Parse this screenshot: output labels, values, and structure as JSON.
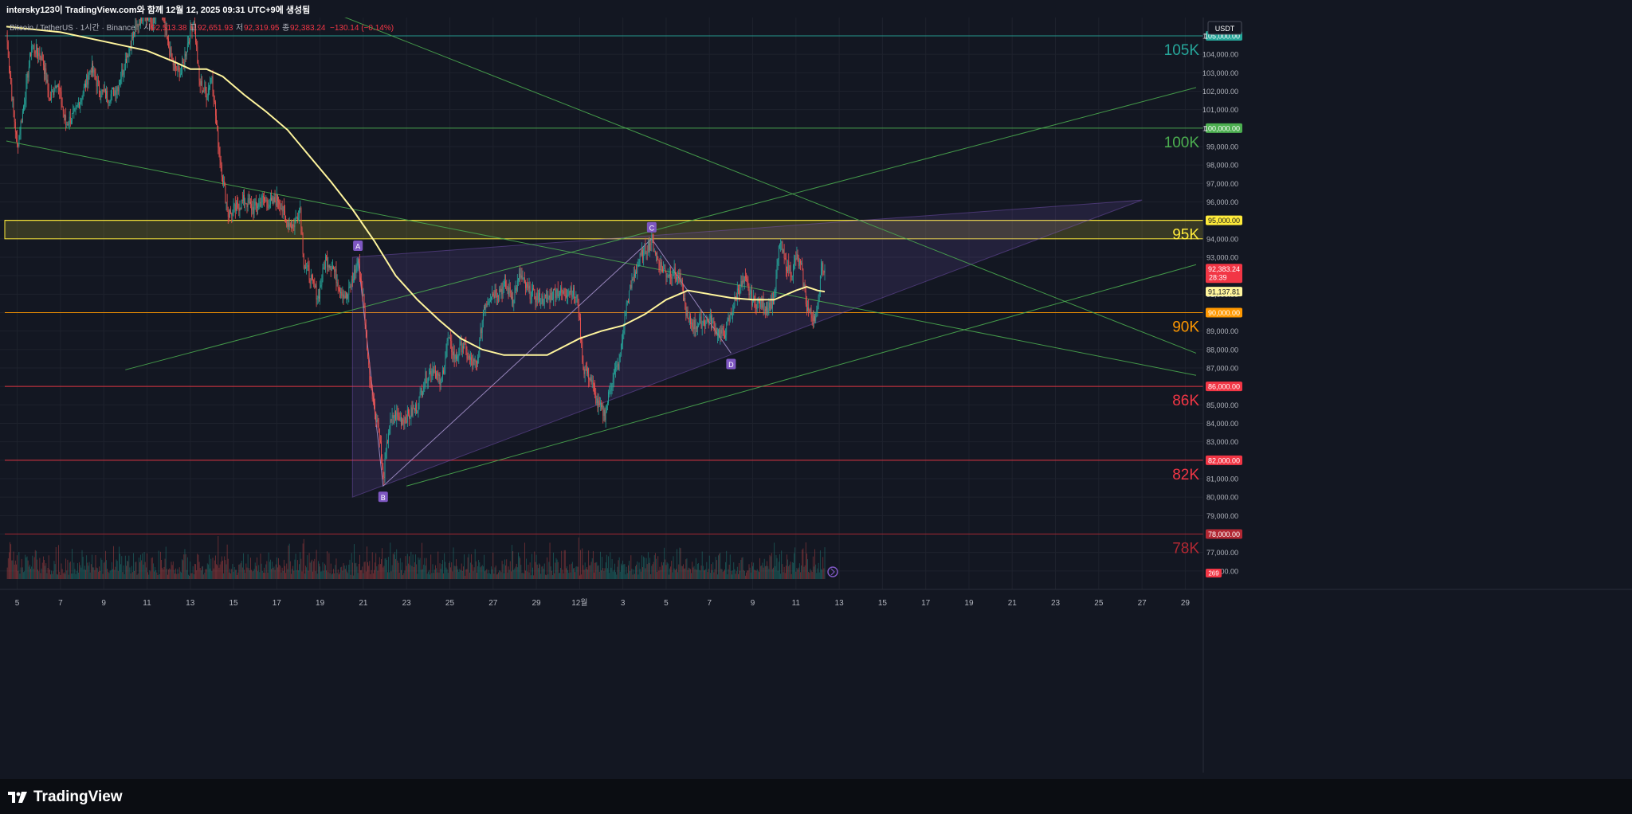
{
  "caption": "intersky123이 TradingView.com와 함께 12월 12, 2025 09:31 UTC+9에 생성됨",
  "legend": {
    "symbol": "Bitcoin / TetherUS · 1시간 · Binance",
    "open_label": "시",
    "open": "92,513.38",
    "high_label": "고",
    "high": "92,651.93",
    "low_label": "저",
    "low": "92,319.95",
    "close_label": "종",
    "close": "92,383.24",
    "change": "−130.14 (−0.14%)"
  },
  "currency_button": "USDT",
  "brand": "TradingView",
  "colors": {
    "background": "#131722",
    "grid": "#1e222d",
    "up": "#26a69a",
    "down": "#ef5350",
    "ma": "#fff59d",
    "channel": "#4caf50",
    "triangle_fill": "#7e57c2",
    "level_105k": "#26a69a",
    "level_100k": "#4caf50",
    "level_95k": "#ffeb3b",
    "level_90k": "#ff9800",
    "level_86k": "#f23645",
    "level_82k": "#f23645",
    "level_78k": "#b22833"
  },
  "chart_data": {
    "type": "candlestick",
    "title": "Bitcoin / TetherUS · 1시간 · Binance",
    "ylim": [
      75000,
      107000
    ],
    "y_ticks": [
      76000,
      77000,
      78000,
      79000,
      80000,
      81000,
      82000,
      83000,
      84000,
      85000,
      86000,
      87000,
      88000,
      89000,
      90000,
      91000,
      92000,
      93000,
      94000,
      95000,
      96000,
      97000,
      98000,
      99000,
      100000,
      101000,
      102000,
      103000,
      104000,
      105000
    ],
    "y_tick_labels": [
      "76,000.00",
      "77,000.00",
      "78,000.00",
      "79,000.00",
      "80,000.00",
      "81,000.00",
      "82,000.00",
      "83,000.00",
      "84,000.00",
      "85,000.00",
      "86,000.00",
      "87,000.00",
      "88,000.00",
      "89,000.00",
      "90,000.00",
      "91,000.00",
      "92,000.00",
      "93,000.00",
      "94,000.00",
      "95,000.00",
      "96,000.00",
      "97,000.00",
      "98,000.00",
      "99,000.00",
      "100,000.00",
      "101,000.00",
      "102,000.00",
      "103,000.00",
      "104,000.00",
      "105,000.00"
    ],
    "x_domain_days": [
      "2025-11-04 12:00",
      "2025-12-29 12:00"
    ],
    "x_ticks": [
      {
        "date": "2025-11-05",
        "label": "5"
      },
      {
        "date": "2025-11-07",
        "label": "7"
      },
      {
        "date": "2025-11-09",
        "label": "9"
      },
      {
        "date": "2025-11-11",
        "label": "11"
      },
      {
        "date": "2025-11-13",
        "label": "13"
      },
      {
        "date": "2025-11-15",
        "label": "15"
      },
      {
        "date": "2025-11-17",
        "label": "17"
      },
      {
        "date": "2025-11-19",
        "label": "19"
      },
      {
        "date": "2025-11-21",
        "label": "21"
      },
      {
        "date": "2025-11-23",
        "label": "23"
      },
      {
        "date": "2025-11-25",
        "label": "25"
      },
      {
        "date": "2025-11-27",
        "label": "27"
      },
      {
        "date": "2025-11-29",
        "label": "29"
      },
      {
        "date": "2025-12-01",
        "label": "12월"
      },
      {
        "date": "2025-12-03",
        "label": "3"
      },
      {
        "date": "2025-12-05",
        "label": "5"
      },
      {
        "date": "2025-12-07",
        "label": "7"
      },
      {
        "date": "2025-12-09",
        "label": "9"
      },
      {
        "date": "2025-12-11",
        "label": "11"
      },
      {
        "date": "2025-12-13",
        "label": "13"
      },
      {
        "date": "2025-12-15",
        "label": "15"
      },
      {
        "date": "2025-12-17",
        "label": "17"
      },
      {
        "date": "2025-12-19",
        "label": "19"
      },
      {
        "date": "2025-12-21",
        "label": "21"
      },
      {
        "date": "2025-12-23",
        "label": "23"
      },
      {
        "date": "2025-12-25",
        "label": "25"
      },
      {
        "date": "2025-12-27",
        "label": "27"
      },
      {
        "date": "2025-12-29",
        "label": "29"
      }
    ],
    "price_path": [
      [
        "2025-11-04 12:00",
        105200
      ],
      [
        "2025-11-04 18:00",
        101800
      ],
      [
        "2025-11-05 00:00",
        99000
      ],
      [
        "2025-11-05 08:00",
        101500
      ],
      [
        "2025-11-05 16:00",
        104500
      ],
      [
        "2025-11-06 04:00",
        103800
      ],
      [
        "2025-11-06 12:00",
        101500
      ],
      [
        "2025-11-06 20:00",
        102600
      ],
      [
        "2025-11-07 06:00",
        100200
      ],
      [
        "2025-11-07 16:00",
        100800
      ],
      [
        "2025-11-08 00:00",
        101800
      ],
      [
        "2025-11-08 10:00",
        103300
      ],
      [
        "2025-11-08 20:00",
        102000
      ],
      [
        "2025-11-09 06:00",
        101700
      ],
      [
        "2025-11-09 16:00",
        102300
      ],
      [
        "2025-11-10 02:00",
        104000
      ],
      [
        "2025-11-10 10:00",
        105200
      ],
      [
        "2025-11-10 20:00",
        106300
      ],
      [
        "2025-11-11 06:00",
        105600
      ],
      [
        "2025-11-11 14:00",
        106700
      ],
      [
        "2025-11-11 22:00",
        104800
      ],
      [
        "2025-11-12 06:00",
        103300
      ],
      [
        "2025-11-12 14:00",
        103000
      ],
      [
        "2025-11-12 22:00",
        104800
      ],
      [
        "2025-11-13 04:00",
        106000
      ],
      [
        "2025-11-13 10:00",
        102500
      ],
      [
        "2025-11-13 18:00",
        101800
      ],
      [
        "2025-11-14 00:00",
        102900
      ],
      [
        "2025-11-14 06:00",
        99600
      ],
      [
        "2025-11-14 12:00",
        97300
      ],
      [
        "2025-11-14 18:00",
        95300
      ],
      [
        "2025-11-15 02:00",
        95600
      ],
      [
        "2025-11-15 12:00",
        96100
      ],
      [
        "2025-11-15 22:00",
        95600
      ],
      [
        "2025-11-16 08:00",
        96100
      ],
      [
        "2025-11-16 18:00",
        95900
      ],
      [
        "2025-11-17 02:00",
        96200
      ],
      [
        "2025-11-17 10:00",
        95000
      ],
      [
        "2025-11-17 18:00",
        94700
      ],
      [
        "2025-11-18 02:00",
        95700
      ],
      [
        "2025-11-18 06:00",
        92700
      ],
      [
        "2025-11-18 14:00",
        91800
      ],
      [
        "2025-11-18 22:00",
        90800
      ],
      [
        "2025-11-19 06:00",
        92900
      ],
      [
        "2025-11-19 14:00",
        92500
      ],
      [
        "2025-11-19 22:00",
        91300
      ],
      [
        "2025-11-20 06:00",
        90800
      ],
      [
        "2025-11-20 12:00",
        91800
      ],
      [
        "2025-11-20 18:00",
        92800
      ],
      [
        "2025-11-21 00:00",
        90800
      ],
      [
        "2025-11-21 06:00",
        87000
      ],
      [
        "2025-11-21 12:00",
        85000
      ],
      [
        "2025-11-21 18:00",
        83400
      ],
      [
        "2025-11-21 22:00",
        80900
      ],
      [
        "2025-11-22 04:00",
        83600
      ],
      [
        "2025-11-22 10:00",
        84500
      ],
      [
        "2025-11-22 18:00",
        84200
      ],
      [
        "2025-11-23 04:00",
        84500
      ],
      [
        "2025-11-23 12:00",
        84900
      ],
      [
        "2025-11-23 20:00",
        86400
      ],
      [
        "2025-11-24 06:00",
        87000
      ],
      [
        "2025-11-24 14:00",
        86100
      ],
      [
        "2025-11-24 22:00",
        88600
      ],
      [
        "2025-11-25 06:00",
        87500
      ],
      [
        "2025-11-25 14:00",
        88300
      ],
      [
        "2025-11-25 22:00",
        87400
      ],
      [
        "2025-11-26 06:00",
        87100
      ],
      [
        "2025-11-26 14:00",
        90400
      ],
      [
        "2025-11-26 22:00",
        91000
      ],
      [
        "2025-11-27 06:00",
        91200
      ],
      [
        "2025-11-27 14:00",
        91400
      ],
      [
        "2025-11-27 22:00",
        90800
      ],
      [
        "2025-11-28 06:00",
        92000
      ],
      [
        "2025-11-28 14:00",
        91200
      ],
      [
        "2025-11-28 22:00",
        90900
      ],
      [
        "2025-11-29 06:00",
        90700
      ],
      [
        "2025-11-29 14:00",
        90800
      ],
      [
        "2025-11-29 22:00",
        91200
      ],
      [
        "2025-11-30 06:00",
        91000
      ],
      [
        "2025-11-30 14:00",
        91300
      ],
      [
        "2025-11-30 22:00",
        90600
      ],
      [
        "2025-12-01 04:00",
        87000
      ],
      [
        "2025-12-01 12:00",
        86500
      ],
      [
        "2025-12-01 20:00",
        85000
      ],
      [
        "2025-12-02 04:00",
        84500
      ],
      [
        "2025-12-02 12:00",
        86400
      ],
      [
        "2025-12-02 20:00",
        87300
      ],
      [
        "2025-12-03 04:00",
        90400
      ],
      [
        "2025-12-03 12:00",
        92000
      ],
      [
        "2025-12-03 20:00",
        93000
      ],
      [
        "2025-12-04 02:00",
        93500
      ],
      [
        "2025-12-04 08:00",
        93900
      ],
      [
        "2025-12-04 16:00",
        92700
      ],
      [
        "2025-12-05 00:00",
        92100
      ],
      [
        "2025-12-05 08:00",
        92200
      ],
      [
        "2025-12-05 16:00",
        91700
      ],
      [
        "2025-12-06 00:00",
        89600
      ],
      [
        "2025-12-06 08:00",
        89300
      ],
      [
        "2025-12-06 16:00",
        89500
      ],
      [
        "2025-12-07 00:00",
        89600
      ],
      [
        "2025-12-07 08:00",
        89000
      ],
      [
        "2025-12-07 16:00",
        88800
      ],
      [
        "2025-12-08 00:00",
        89900
      ],
      [
        "2025-12-08 08:00",
        91300
      ],
      [
        "2025-12-08 16:00",
        91700
      ],
      [
        "2025-12-09 00:00",
        90600
      ],
      [
        "2025-12-09 08:00",
        90500
      ],
      [
        "2025-12-09 16:00",
        90300
      ],
      [
        "2025-12-10 00:00",
        90700
      ],
      [
        "2025-12-10 06:00",
        93900
      ],
      [
        "2025-12-10 12:00",
        92700
      ],
      [
        "2025-12-10 20:00",
        92200
      ],
      [
        "2025-12-11 00:00",
        93000
      ],
      [
        "2025-12-11 06:00",
        92400
      ],
      [
        "2025-12-11 12:00",
        90300
      ],
      [
        "2025-12-11 18:00",
        89800
      ],
      [
        "2025-12-12 00:00",
        90000
      ],
      [
        "2025-12-12 04:00",
        92700
      ],
      [
        "2025-12-12 08:00",
        92383.24
      ]
    ],
    "ma_path": [
      [
        "2025-11-04 12:00",
        105500
      ],
      [
        "2025-11-07 00:00",
        105200
      ],
      [
        "2025-11-09 00:00",
        104700
      ],
      [
        "2025-11-11 00:00",
        104200
      ],
      [
        "2025-11-12 06:00",
        103600
      ],
      [
        "2025-11-13 00:00",
        103200
      ],
      [
        "2025-11-13 18:00",
        103200
      ],
      [
        "2025-11-14 12:00",
        102800
      ],
      [
        "2025-11-15 12:00",
        101800
      ],
      [
        "2025-11-16 12:00",
        100900
      ],
      [
        "2025-11-17 12:00",
        99900
      ],
      [
        "2025-11-18 12:00",
        98500
      ],
      [
        "2025-11-19 12:00",
        97100
      ],
      [
        "2025-11-20 12:00",
        95600
      ],
      [
        "2025-11-21 12:00",
        93900
      ],
      [
        "2025-11-22 12:00",
        92000
      ],
      [
        "2025-11-23 12:00",
        90700
      ],
      [
        "2025-11-24 12:00",
        89600
      ],
      [
        "2025-11-25 12:00",
        88600
      ],
      [
        "2025-11-26 12:00",
        88000
      ],
      [
        "2025-11-27 12:00",
        87700
      ],
      [
        "2025-11-28 12:00",
        87700
      ],
      [
        "2025-11-29 12:00",
        87700
      ],
      [
        "2025-11-30 00:00",
        88000
      ],
      [
        "2025-12-01 00:00",
        88600
      ],
      [
        "2025-12-02 00:00",
        89000
      ],
      [
        "2025-12-03 00:00",
        89300
      ],
      [
        "2025-12-04 00:00",
        89900
      ],
      [
        "2025-12-05 00:00",
        90700
      ],
      [
        "2025-12-06 00:00",
        91200
      ],
      [
        "2025-12-07 00:00",
        91000
      ],
      [
        "2025-12-08 00:00",
        90800
      ],
      [
        "2025-12-09 00:00",
        90700
      ],
      [
        "2025-12-10 00:00",
        90700
      ],
      [
        "2025-12-11 00:00",
        91200
      ],
      [
        "2025-12-11 12:00",
        91400
      ],
      [
        "2025-12-12 00:00",
        91200
      ],
      [
        "2025-12-12 08:00",
        91137.81
      ]
    ],
    "horizontal_levels": [
      {
        "price": 105000,
        "name": "105K",
        "axis_label": "105,000.00",
        "color_key": "level_105k"
      },
      {
        "price": 100000,
        "name": "100K",
        "axis_label": "100,000.00",
        "color_key": "level_100k"
      },
      {
        "price": 95000,
        "name": "95K",
        "axis_label": "95,000.00",
        "color_key": "level_95k"
      },
      {
        "price": 90000,
        "name": "90K",
        "axis_label": "90,000.00",
        "color_key": "level_90k"
      },
      {
        "price": 86000,
        "name": "86K",
        "axis_label": "86,000.00",
        "color_key": "level_86k"
      },
      {
        "price": 82000,
        "name": "82K",
        "axis_label": "82,000.00",
        "color_key": "level_82k"
      },
      {
        "price": 78000,
        "name": "78K",
        "axis_label": "78,000.00",
        "color_key": "level_78k"
      }
    ],
    "zone": {
      "from": 94000,
      "to": 95000
    },
    "pattern_points": [
      {
        "label": "A",
        "date": "2025-11-20 18:00",
        "price": 93000
      },
      {
        "label": "B",
        "date": "2025-11-21 22:00",
        "price": 80600
      },
      {
        "label": "C",
        "date": "2025-12-04 08:00",
        "price": 94000
      },
      {
        "label": "D",
        "date": "2025-12-08 00:00",
        "price": 87800
      }
    ],
    "triangle": [
      [
        "2025-11-20 12:00",
        93000
      ],
      [
        "2025-12-27 00:00",
        96100
      ],
      [
        "2025-11-20 12:00",
        80000
      ]
    ],
    "trend_lines": [
      {
        "from": [
          "2025-11-04 12:00",
          99300
        ],
        "to": [
          "2025-12-29 12:00",
          86600
        ]
      },
      {
        "from": [
          "2025-11-10 00:00",
          86900
        ],
        "to": [
          "2025-12-29 12:00",
          102200
        ]
      },
      {
        "from": [
          "2025-11-23 00:00",
          80600
        ],
        "to": [
          "2025-12-29 12:00",
          92600
        ]
      },
      {
        "from": [
          "2025-11-18 00:00",
          107000
        ],
        "to": [
          "2025-12-29 12:00",
          87800
        ]
      }
    ],
    "price_badges": [
      {
        "price": 92383.24,
        "label": "92,383.24",
        "sub": "28:39",
        "color": "#f23645"
      },
      {
        "price": 91137.81,
        "label": "91,137.81",
        "color": "#fff59d"
      }
    ],
    "volume_label": "269"
  }
}
